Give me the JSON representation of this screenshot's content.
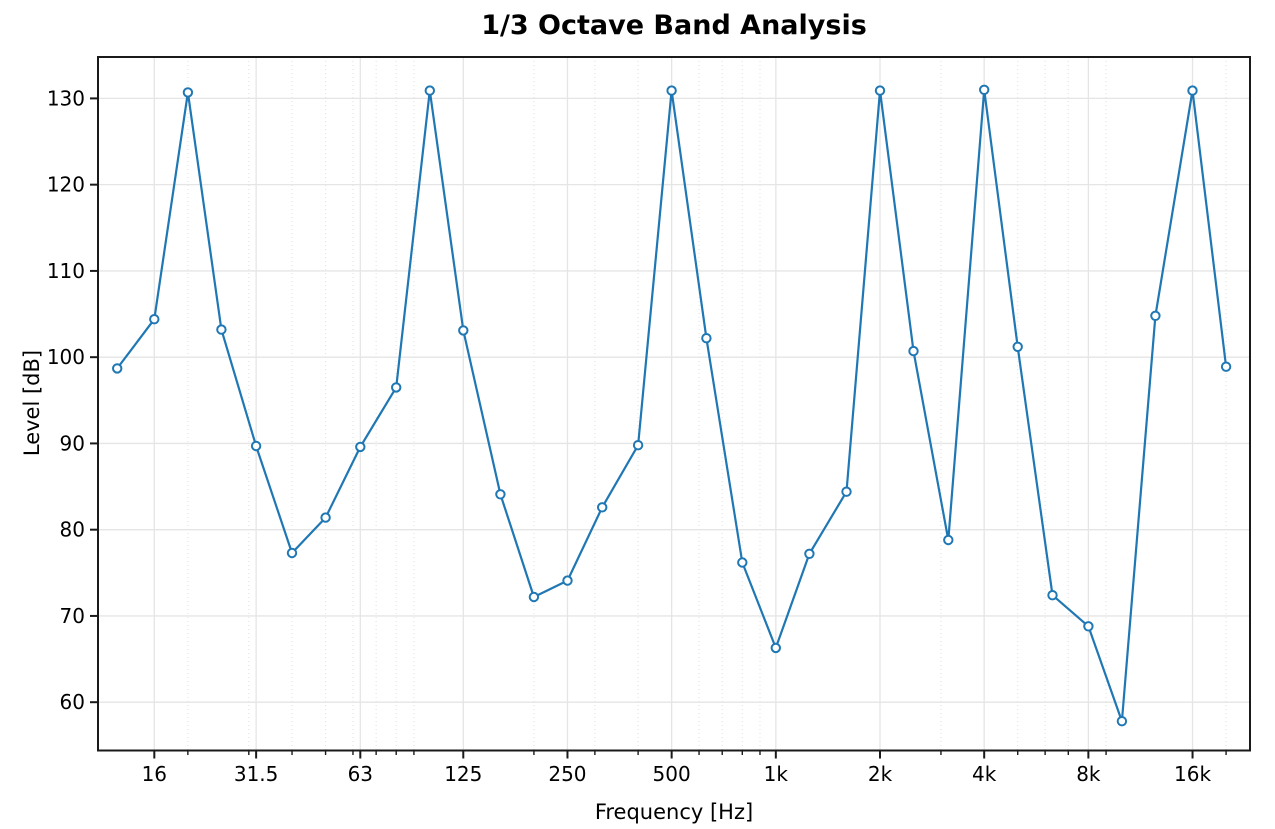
{
  "chart_data": {
    "type": "line",
    "title": "1/3 Octave Band Analysis",
    "xlabel": "Frequency [Hz]",
    "ylabel": "Level [dB]",
    "x_scale": "log",
    "grid": true,
    "legend": "none",
    "xlim": [
      11.0,
      23450
    ],
    "ylim": [
      54.4,
      134.8
    ],
    "x": [
      12.5,
      16,
      20,
      25,
      31.5,
      40,
      50,
      63,
      80,
      100,
      125,
      160,
      200,
      250,
      315,
      400,
      500,
      630,
      800,
      1000,
      1250,
      1600,
      2000,
      2500,
      3150,
      4000,
      5000,
      6300,
      8000,
      10000,
      12500,
      16000,
      20000
    ],
    "y": [
      98.7,
      104.4,
      130.7,
      103.2,
      89.7,
      77.3,
      81.4,
      89.6,
      96.5,
      130.9,
      103.1,
      84.1,
      72.2,
      74.1,
      82.6,
      89.8,
      130.9,
      102.2,
      76.2,
      66.3,
      77.2,
      84.4,
      130.9,
      100.7,
      78.8,
      131.0,
      101.2,
      72.4,
      68.8,
      57.8,
      104.8,
      130.9,
      98.9
    ],
    "x_ticks": [
      {
        "f": 16,
        "label": "16"
      },
      {
        "f": 31.5,
        "label": "31.5"
      },
      {
        "f": 63,
        "label": "63"
      },
      {
        "f": 125,
        "label": "125"
      },
      {
        "f": 250,
        "label": "250"
      },
      {
        "f": 500,
        "label": "500"
      },
      {
        "f": 1000,
        "label": "1k"
      },
      {
        "f": 2000,
        "label": "2k"
      },
      {
        "f": 4000,
        "label": "4k"
      },
      {
        "f": 8000,
        "label": "8k"
      },
      {
        "f": 16000,
        "label": "16k"
      }
    ],
    "x_minor_ticks": [
      20,
      30,
      40,
      50,
      60,
      70,
      80,
      90,
      200,
      300,
      400,
      600,
      700,
      800,
      900,
      3000,
      5000,
      6000,
      7000,
      9000,
      20000
    ],
    "y_ticks": [
      60,
      70,
      80,
      90,
      100,
      110,
      120,
      130
    ],
    "style": {
      "line_color": "#1f77b4",
      "marker": "open-circle",
      "marker_face": "#ffffff",
      "grid_color": "#e5e5e5",
      "minor_grid_color": "#e3e3e3",
      "spine_color": "#1a1a1a",
      "text_color": "#000000"
    }
  }
}
